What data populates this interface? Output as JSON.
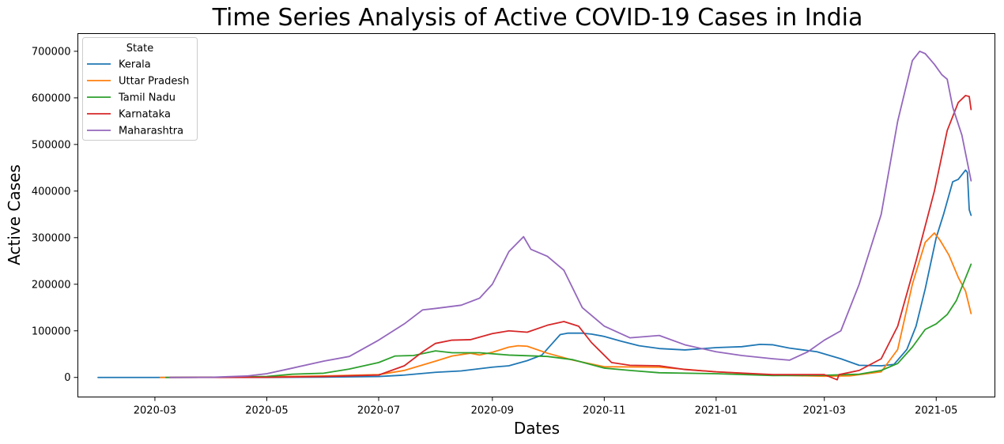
{
  "chart_data": {
    "type": "line",
    "title": "Time Series Analysis of Active COVID-19 Cases in India",
    "xlabel": "Dates",
    "ylabel": "Active Cases",
    "x_range": [
      "2020-01-19",
      "2021-06-02"
    ],
    "ylim": [
      -42000,
      738000
    ],
    "x_ticks": [
      {
        "date": "2020-03-01",
        "label": "2020-03"
      },
      {
        "date": "2020-05-01",
        "label": "2020-05"
      },
      {
        "date": "2020-07-01",
        "label": "2020-07"
      },
      {
        "date": "2020-09-01",
        "label": "2020-09"
      },
      {
        "date": "2020-11-01",
        "label": "2020-11"
      },
      {
        "date": "2021-01-01",
        "label": "2021-01"
      },
      {
        "date": "2021-03-01",
        "label": "2021-03"
      },
      {
        "date": "2021-05-01",
        "label": "2021-05"
      }
    ],
    "y_ticks": [
      0,
      100000,
      200000,
      300000,
      400000,
      500000,
      600000,
      700000
    ],
    "grid": false,
    "legend": {
      "title": "State",
      "position": "top-left"
    },
    "series": [
      {
        "name": "Kerala",
        "color": "#1f77b4",
        "points": [
          [
            "2020-01-30",
            0
          ],
          [
            "2020-03-01",
            0
          ],
          [
            "2020-04-01",
            250
          ],
          [
            "2020-05-01",
            100
          ],
          [
            "2020-06-01",
            600
          ],
          [
            "2020-07-01",
            2000
          ],
          [
            "2020-07-15",
            5000
          ],
          [
            "2020-08-01",
            11000
          ],
          [
            "2020-08-15",
            14000
          ],
          [
            "2020-09-01",
            22000
          ],
          [
            "2020-09-10",
            25000
          ],
          [
            "2020-09-20",
            36000
          ],
          [
            "2020-09-28",
            48000
          ],
          [
            "2020-10-03",
            70000
          ],
          [
            "2020-10-08",
            92000
          ],
          [
            "2020-10-12",
            95000
          ],
          [
            "2020-10-20",
            95000
          ],
          [
            "2020-10-25",
            93000
          ],
          [
            "2020-11-01",
            88000
          ],
          [
            "2020-11-10",
            78000
          ],
          [
            "2020-11-20",
            68000
          ],
          [
            "2020-12-01",
            62000
          ],
          [
            "2020-12-15",
            59000
          ],
          [
            "2021-01-01",
            64000
          ],
          [
            "2021-01-15",
            66000
          ],
          [
            "2021-01-25",
            71000
          ],
          [
            "2021-02-01",
            70000
          ],
          [
            "2021-02-10",
            63000
          ],
          [
            "2021-02-25",
            55000
          ],
          [
            "2021-03-10",
            40000
          ],
          [
            "2021-03-20",
            26000
          ],
          [
            "2021-04-01",
            25000
          ],
          [
            "2021-04-08",
            28000
          ],
          [
            "2021-04-15",
            60000
          ],
          [
            "2021-04-20",
            110000
          ],
          [
            "2021-04-25",
            190000
          ],
          [
            "2021-05-01",
            300000
          ],
          [
            "2021-05-05",
            350000
          ],
          [
            "2021-05-10",
            420000
          ],
          [
            "2021-05-13",
            425000
          ],
          [
            "2021-05-17",
            445000
          ],
          [
            "2021-05-18",
            440000
          ],
          [
            "2021-05-19",
            360000
          ],
          [
            "2021-05-20",
            348000
          ]
        ]
      },
      {
        "name": "Uttar Pradesh",
        "color": "#ff7f0e",
        "points": [
          [
            "2020-03-04",
            0
          ],
          [
            "2020-04-01",
            200
          ],
          [
            "2020-05-01",
            1500
          ],
          [
            "2020-06-01",
            3000
          ],
          [
            "2020-07-01",
            6000
          ],
          [
            "2020-07-15",
            15000
          ],
          [
            "2020-08-01",
            35000
          ],
          [
            "2020-08-10",
            46000
          ],
          [
            "2020-08-20",
            52000
          ],
          [
            "2020-08-25",
            48000
          ],
          [
            "2020-09-01",
            54000
          ],
          [
            "2020-09-10",
            65000
          ],
          [
            "2020-09-15",
            68000
          ],
          [
            "2020-09-20",
            67000
          ],
          [
            "2020-10-01",
            52000
          ],
          [
            "2020-10-15",
            37000
          ],
          [
            "2020-11-01",
            23000
          ],
          [
            "2020-12-01",
            22000
          ],
          [
            "2021-01-01",
            12000
          ],
          [
            "2021-02-01",
            5000
          ],
          [
            "2021-03-01",
            2500
          ],
          [
            "2021-03-15",
            3500
          ],
          [
            "2021-04-01",
            12000
          ],
          [
            "2021-04-10",
            60000
          ],
          [
            "2021-04-18",
            200000
          ],
          [
            "2021-04-25",
            290000
          ],
          [
            "2021-04-30",
            310000
          ],
          [
            "2021-05-03",
            295000
          ],
          [
            "2021-05-08",
            262000
          ],
          [
            "2021-05-13",
            215000
          ],
          [
            "2021-05-17",
            185000
          ],
          [
            "2021-05-20",
            137000
          ]
        ]
      },
      {
        "name": "Tamil Nadu",
        "color": "#2ca02c",
        "points": [
          [
            "2020-03-07",
            0
          ],
          [
            "2020-04-01",
            300
          ],
          [
            "2020-05-01",
            2000
          ],
          [
            "2020-05-15",
            7000
          ],
          [
            "2020-06-01",
            9000
          ],
          [
            "2020-06-15",
            18000
          ],
          [
            "2020-07-01",
            32000
          ],
          [
            "2020-07-10",
            46000
          ],
          [
            "2020-07-20",
            47000
          ],
          [
            "2020-08-01",
            57000
          ],
          [
            "2020-08-10",
            53000
          ],
          [
            "2020-08-25",
            53000
          ],
          [
            "2020-09-10",
            48000
          ],
          [
            "2020-10-01",
            45000
          ],
          [
            "2020-10-15",
            38000
          ],
          [
            "2020-11-01",
            20000
          ],
          [
            "2020-11-15",
            15000
          ],
          [
            "2020-12-01",
            10000
          ],
          [
            "2021-01-01",
            8000
          ],
          [
            "2021-02-01",
            4000
          ],
          [
            "2021-03-01",
            4500
          ],
          [
            "2021-03-20",
            7000
          ],
          [
            "2021-04-01",
            15000
          ],
          [
            "2021-04-10",
            30000
          ],
          [
            "2021-04-18",
            65000
          ],
          [
            "2021-04-25",
            103000
          ],
          [
            "2021-05-01",
            115000
          ],
          [
            "2021-05-07",
            135000
          ],
          [
            "2021-05-12",
            165000
          ],
          [
            "2021-05-20",
            243000
          ]
        ]
      },
      {
        "name": "Karnataka",
        "color": "#d62728",
        "points": [
          [
            "2020-03-09",
            0
          ],
          [
            "2020-04-01",
            100
          ],
          [
            "2020-05-01",
            300
          ],
          [
            "2020-06-01",
            2000
          ],
          [
            "2020-07-01",
            5000
          ],
          [
            "2020-07-15",
            25000
          ],
          [
            "2020-07-25",
            55000
          ],
          [
            "2020-08-01",
            73000
          ],
          [
            "2020-08-10",
            80000
          ],
          [
            "2020-08-20",
            81000
          ],
          [
            "2020-09-01",
            94000
          ],
          [
            "2020-09-10",
            100000
          ],
          [
            "2020-09-20",
            97000
          ],
          [
            "2020-10-01",
            112000
          ],
          [
            "2020-10-10",
            120000
          ],
          [
            "2020-10-18",
            110000
          ],
          [
            "2020-10-25",
            75000
          ],
          [
            "2020-11-05",
            32000
          ],
          [
            "2020-11-15",
            26000
          ],
          [
            "2020-12-01",
            25000
          ],
          [
            "2020-12-15",
            17000
          ],
          [
            "2021-01-01",
            12000
          ],
          [
            "2021-02-01",
            6000
          ],
          [
            "2021-03-01",
            6000
          ],
          [
            "2021-03-08",
            -5000
          ],
          [
            "2021-03-09",
            6000
          ],
          [
            "2021-03-20",
            15000
          ],
          [
            "2021-04-01",
            40000
          ],
          [
            "2021-04-10",
            110000
          ],
          [
            "2021-04-20",
            250000
          ],
          [
            "2021-04-30",
            400000
          ],
          [
            "2021-05-07",
            530000
          ],
          [
            "2021-05-13",
            590000
          ],
          [
            "2021-05-17",
            605000
          ],
          [
            "2021-05-19",
            603000
          ],
          [
            "2021-05-20",
            575000
          ]
        ]
      },
      {
        "name": "Maharashtra",
        "color": "#9467bd",
        "points": [
          [
            "2020-03-09",
            0
          ],
          [
            "2020-04-01",
            300
          ],
          [
            "2020-04-20",
            3000
          ],
          [
            "2020-05-01",
            8000
          ],
          [
            "2020-05-15",
            20000
          ],
          [
            "2020-06-01",
            35000
          ],
          [
            "2020-06-15",
            45000
          ],
          [
            "2020-07-01",
            80000
          ],
          [
            "2020-07-15",
            115000
          ],
          [
            "2020-07-25",
            145000
          ],
          [
            "2020-08-01",
            148000
          ],
          [
            "2020-08-15",
            155000
          ],
          [
            "2020-08-25",
            170000
          ],
          [
            "2020-09-01",
            200000
          ],
          [
            "2020-09-10",
            270000
          ],
          [
            "2020-09-18",
            302000
          ],
          [
            "2020-09-22",
            275000
          ],
          [
            "2020-10-01",
            260000
          ],
          [
            "2020-10-10",
            230000
          ],
          [
            "2020-10-20",
            150000
          ],
          [
            "2020-11-01",
            110000
          ],
          [
            "2020-11-15",
            85000
          ],
          [
            "2020-12-01",
            90000
          ],
          [
            "2020-12-15",
            70000
          ],
          [
            "2021-01-01",
            55000
          ],
          [
            "2021-01-15",
            47000
          ],
          [
            "2021-02-01",
            40000
          ],
          [
            "2021-02-10",
            37000
          ],
          [
            "2021-02-20",
            55000
          ],
          [
            "2021-03-01",
            80000
          ],
          [
            "2021-03-10",
            100000
          ],
          [
            "2021-03-20",
            200000
          ],
          [
            "2021-04-01",
            350000
          ],
          [
            "2021-04-10",
            550000
          ],
          [
            "2021-04-18",
            680000
          ],
          [
            "2021-04-22",
            700000
          ],
          [
            "2021-04-25",
            695000
          ],
          [
            "2021-04-30",
            672000
          ],
          [
            "2021-05-04",
            650000
          ],
          [
            "2021-05-07",
            640000
          ],
          [
            "2021-05-10",
            580000
          ],
          [
            "2021-05-15",
            520000
          ],
          [
            "2021-05-20",
            422000
          ]
        ]
      }
    ]
  }
}
